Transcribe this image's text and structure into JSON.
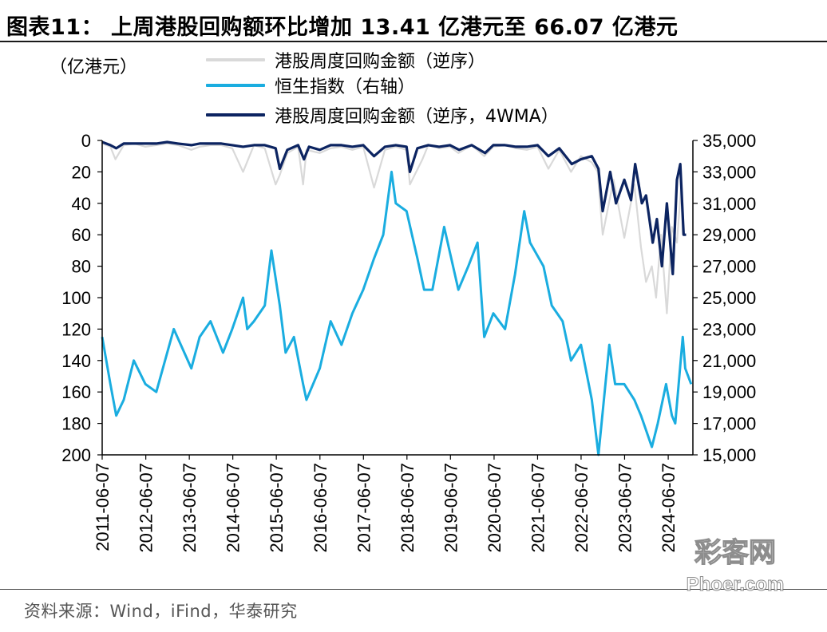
{
  "header": {
    "title": "图表11：  上周港股回购额环比增加 13.41 亿港元至 66.07 亿港元"
  },
  "footer": {
    "source": "资料来源：Wind，iFind，华泰研究"
  },
  "watermark": {
    "text_cn": "彩客网",
    "text_en": "Phoer.com"
  },
  "chart_data": {
    "type": "line",
    "unit_label": "（亿港元）",
    "y_left": {
      "range": [
        0,
        200
      ],
      "inverted": true,
      "ticks": [
        "0",
        "20",
        "40",
        "60",
        "80",
        "100",
        "120",
        "140",
        "160",
        "180",
        "200"
      ]
    },
    "y_right": {
      "range": [
        15000,
        35000
      ],
      "ticks": [
        "35,000",
        "33,000",
        "31,000",
        "29,000",
        "27,000",
        "25,000",
        "23,000",
        "21,000",
        "19,000",
        "17,000",
        "15,000"
      ]
    },
    "x_ticks": [
      "2011-06-07",
      "2012-06-07",
      "2013-06-07",
      "2014-06-07",
      "2015-06-07",
      "2016-06-07",
      "2017-06-07",
      "2018-06-07",
      "2019-06-07",
      "2020-06-07",
      "2021-06-07",
      "2022-06-07",
      "2023-06-07",
      "2024-06-07"
    ],
    "x_range": [
      "2011-06-07",
      "2024-12-31"
    ],
    "grid": false,
    "legend_position": "top",
    "series": [
      {
        "name": "港股周度回购金额（逆序）",
        "axis": "left",
        "color": "#d9d9d9",
        "x": [
          "2011-06-07",
          "2011-08-15",
          "2011-09-26",
          "2011-12-05",
          "2012-03-05",
          "2012-06-04",
          "2012-09-03",
          "2012-12-03",
          "2013-03-04",
          "2013-06-24",
          "2013-09-02",
          "2013-12-02",
          "2014-03-03",
          "2014-06-02",
          "2014-09-01",
          "2014-12-01",
          "2015-03-02",
          "2015-06-01",
          "2015-07-06",
          "2015-09-07",
          "2015-12-07",
          "2016-01-18",
          "2016-02-15",
          "2016-06-06",
          "2016-09-05",
          "2016-12-05",
          "2017-03-06",
          "2017-06-05",
          "2017-09-04",
          "2017-12-04",
          "2018-03-05",
          "2018-06-04",
          "2018-07-02",
          "2018-10-15",
          "2018-12-03",
          "2019-03-04",
          "2019-06-03",
          "2019-08-12",
          "2019-12-02",
          "2020-03-16",
          "2020-06-01",
          "2020-09-07",
          "2020-12-07",
          "2021-03-08",
          "2021-06-07",
          "2021-09-06",
          "2021-12-06",
          "2022-03-14",
          "2022-06-06",
          "2022-09-05",
          "2022-10-24",
          "2022-12-05",
          "2023-03-06",
          "2023-06-05",
          "2023-08-28",
          "2023-10-23",
          "2023-12-04",
          "2024-01-22",
          "2024-02-26",
          "2024-04-08",
          "2024-05-27",
          "2024-07-08",
          "2024-08-19",
          "2024-09-23",
          "2024-10-07"
        ],
        "values": [
          2,
          4,
          12,
          3,
          2,
          4,
          3,
          2,
          3,
          6,
          4,
          3,
          3,
          5,
          20,
          3,
          5,
          28,
          22,
          8,
          4,
          28,
          6,
          8,
          5,
          4,
          6,
          4,
          30,
          6,
          4,
          6,
          28,
          12,
          3,
          5,
          4,
          8,
          3,
          10,
          4,
          3,
          5,
          6,
          4,
          18,
          6,
          20,
          10,
          14,
          20,
          60,
          25,
          62,
          28,
          68,
          90,
          80,
          100,
          60,
          110,
          55,
          65,
          30,
          60
        ]
      },
      {
        "name": "恒生指数（右轴）",
        "axis": "right",
        "color": "#1aade0",
        "x": [
          "2011-06-07",
          "2011-08-15",
          "2011-10-03",
          "2011-12-05",
          "2012-02-27",
          "2012-06-04",
          "2012-09-03",
          "2013-01-28",
          "2013-06-24",
          "2013-09-02",
          "2013-12-02",
          "2014-03-17",
          "2014-06-02",
          "2014-09-01",
          "2014-10-06",
          "2014-12-01",
          "2015-03-02",
          "2015-04-27",
          "2015-07-06",
          "2015-08-24",
          "2015-11-02",
          "2016-01-18",
          "2016-02-15",
          "2016-06-06",
          "2016-09-05",
          "2016-12-05",
          "2017-03-06",
          "2017-06-05",
          "2017-09-04",
          "2017-11-20",
          "2018-01-29",
          "2018-03-05",
          "2018-06-04",
          "2018-09-03",
          "2018-10-29",
          "2019-01-07",
          "2019-04-15",
          "2019-08-12",
          "2019-11-04",
          "2020-01-20",
          "2020-03-16",
          "2020-06-01",
          "2020-09-07",
          "2020-11-30",
          "2021-02-15",
          "2021-04-05",
          "2021-07-26",
          "2021-10-04",
          "2022-01-03",
          "2022-03-14",
          "2022-06-06",
          "2022-09-05",
          "2022-10-31",
          "2023-01-30",
          "2023-03-20",
          "2023-06-05",
          "2023-08-28",
          "2023-10-23",
          "2024-01-22",
          "2024-03-11",
          "2024-05-20",
          "2024-07-08",
          "2024-08-05",
          "2024-10-07",
          "2024-10-28",
          "2024-12-16"
        ],
        "values": [
          22500,
          19500,
          17500,
          18500,
          21000,
          19500,
          19000,
          23000,
          20500,
          22500,
          23500,
          21500,
          23000,
          25000,
          23000,
          23500,
          24500,
          28000,
          24500,
          21500,
          22500,
          19500,
          18500,
          20500,
          23500,
          22000,
          24000,
          25500,
          27500,
          29000,
          33000,
          31000,
          30500,
          27500,
          25500,
          25500,
          29500,
          25500,
          27000,
          28500,
          22500,
          24000,
          23000,
          26500,
          30500,
          28500,
          27000,
          24500,
          23500,
          21000,
          22000,
          18500,
          15000,
          22000,
          19500,
          19500,
          18500,
          17500,
          15500,
          17000,
          19500,
          17500,
          17000,
          22500,
          20500,
          19500
        ]
      },
      {
        "name": "港股周度回购金额（逆序，4WMA）",
        "axis": "left",
        "color": "#0c2461",
        "x": [
          "2011-06-07",
          "2011-08-15",
          "2011-10-03",
          "2011-12-05",
          "2012-03-05",
          "2012-06-04",
          "2012-09-03",
          "2012-12-03",
          "2013-03-04",
          "2013-06-24",
          "2013-09-02",
          "2013-12-02",
          "2014-03-03",
          "2014-06-02",
          "2014-09-01",
          "2014-12-01",
          "2015-03-02",
          "2015-06-01",
          "2015-07-06",
          "2015-09-07",
          "2015-12-07",
          "2016-01-25",
          "2016-03-07",
          "2016-06-06",
          "2016-09-05",
          "2016-12-05",
          "2017-03-06",
          "2017-06-05",
          "2017-09-04",
          "2017-12-04",
          "2018-03-05",
          "2018-06-04",
          "2018-07-02",
          "2018-09-03",
          "2018-12-03",
          "2019-03-04",
          "2019-06-03",
          "2019-08-19",
          "2019-12-02",
          "2020-03-23",
          "2020-06-01",
          "2020-09-07",
          "2020-12-07",
          "2021-03-08",
          "2021-06-07",
          "2021-09-06",
          "2021-12-06",
          "2022-03-21",
          "2022-06-06",
          "2022-09-05",
          "2022-10-31",
          "2022-12-05",
          "2023-02-06",
          "2023-03-27",
          "2023-06-05",
          "2023-07-31",
          "2023-09-04",
          "2023-10-30",
          "2023-12-04",
          "2024-01-29",
          "2024-03-04",
          "2024-04-15",
          "2024-05-27",
          "2024-07-15",
          "2024-08-19",
          "2024-09-16",
          "2024-10-14",
          "2024-11-04"
        ],
        "values": [
          1,
          3,
          5,
          2,
          2,
          2,
          2,
          1,
          2,
          3,
          2,
          2,
          2,
          3,
          4,
          3,
          3,
          5,
          18,
          6,
          3,
          12,
          4,
          6,
          3,
          3,
          4,
          3,
          10,
          4,
          3,
          4,
          20,
          5,
          3,
          4,
          3,
          6,
          3,
          8,
          3,
          3,
          4,
          4,
          3,
          10,
          5,
          15,
          12,
          10,
          18,
          45,
          20,
          40,
          25,
          38,
          15,
          40,
          35,
          65,
          50,
          80,
          40,
          85,
          25,
          15,
          60,
          60
        ]
      }
    ]
  }
}
